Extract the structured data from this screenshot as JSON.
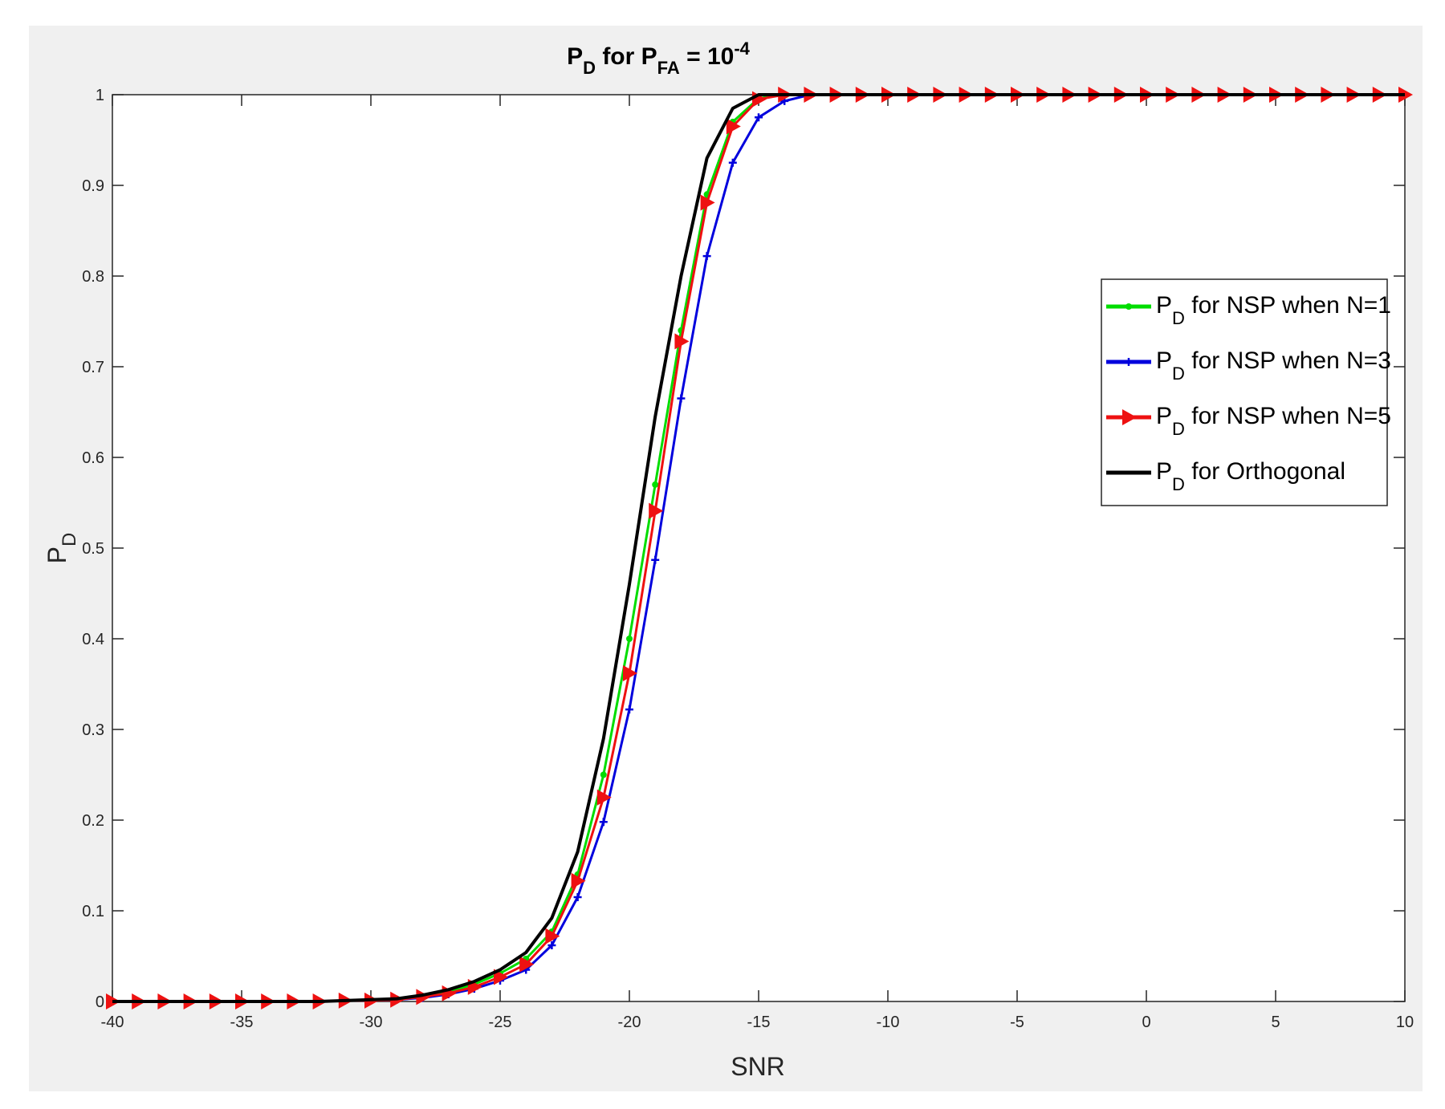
{
  "chart_data": {
    "type": "line",
    "title": {
      "main": "P",
      "main_sub": "D",
      "mid": " for P",
      "mid_sub": "FA",
      "eq": " = 10",
      "exp": "-4"
    },
    "xlabel": "SNR",
    "ylabel": {
      "main": "P",
      "sub": "D"
    },
    "xlim": [
      -40,
      10
    ],
    "ylim": [
      0,
      1
    ],
    "x_ticks": [
      "-40",
      "-35",
      "-30",
      "-25",
      "-20",
      "-15",
      "-10",
      "-5",
      "0",
      "5",
      "10"
    ],
    "y_ticks": [
      "0",
      "0.1",
      "0.2",
      "0.3",
      "0.4",
      "0.5",
      "0.6",
      "0.7",
      "0.8",
      "0.9",
      "1"
    ],
    "grid": false,
    "legend_position": "right-middle",
    "x": [
      -40,
      -39,
      -38,
      -37,
      -36,
      -35,
      -34,
      -33,
      -32,
      -31,
      -30,
      -29,
      -28,
      -27,
      -26,
      -25,
      -24,
      -23,
      -22,
      -21,
      -20,
      -19,
      -18,
      -17,
      -16,
      -15,
      -14,
      -13,
      -12,
      -11,
      -10,
      -9,
      -8,
      -7,
      -6,
      -5,
      -4,
      -3,
      -2,
      -1,
      0,
      1,
      2,
      3,
      4,
      5,
      6,
      7,
      8,
      9,
      10
    ],
    "series": [
      {
        "legend_main": "P",
        "legend_sub": "D",
        "legend_rest": " for NSP when N=1",
        "color": "#00dd00",
        "marker": "dot",
        "values": [
          0,
          0,
          0,
          0,
          0,
          0,
          0,
          0,
          0,
          0.001,
          0.002,
          0.003,
          0.006,
          0.011,
          0.019,
          0.031,
          0.047,
          0.077,
          0.14,
          0.25,
          0.4,
          0.57,
          0.74,
          0.89,
          0.97,
          0.996,
          1,
          1,
          1,
          1,
          1,
          1,
          1,
          1,
          1,
          1,
          1,
          1,
          1,
          1,
          1,
          1,
          1,
          1,
          1,
          1,
          1,
          1,
          1,
          1,
          1
        ]
      },
      {
        "legend_main": "P",
        "legend_sub": "D",
        "legend_rest": " for NSP when N=3",
        "color": "#0000dd",
        "marker": "plus",
        "values": [
          0,
          0,
          0,
          0,
          0,
          0,
          0,
          0,
          0,
          0.001,
          0.001,
          0.002,
          0.004,
          0.008,
          0.014,
          0.023,
          0.035,
          0.062,
          0.115,
          0.198,
          0.322,
          0.487,
          0.665,
          0.822,
          0.925,
          0.975,
          0.993,
          1,
          1,
          1,
          1,
          1,
          1,
          1,
          1,
          1,
          1,
          1,
          1,
          1,
          1,
          1,
          1,
          1,
          1,
          1,
          1,
          1,
          1,
          1,
          1
        ]
      },
      {
        "legend_main": "P",
        "legend_sub": "D",
        "legend_rest": " for NSP when N=5",
        "color": "#ee1111",
        "marker": "triangle-right",
        "values": [
          0,
          0,
          0,
          0,
          0,
          0,
          0,
          0,
          0,
          0.001,
          0.001,
          0.002,
          0.005,
          0.009,
          0.016,
          0.027,
          0.041,
          0.072,
          0.133,
          0.225,
          0.362,
          0.541,
          0.728,
          0.881,
          0.965,
          0.995,
          1,
          1,
          1,
          1,
          1,
          1,
          1,
          1,
          1,
          1,
          1,
          1,
          1,
          1,
          1,
          1,
          1,
          1,
          1,
          1,
          1,
          1,
          1,
          1,
          1
        ]
      },
      {
        "legend_main": "P",
        "legend_sub": "D",
        "legend_rest": " for Orthogonal",
        "color": "#000000",
        "marker": "none",
        "values": [
          0,
          0,
          0,
          0,
          0,
          0,
          0,
          0,
          0,
          0.001,
          0.002,
          0.003,
          0.007,
          0.013,
          0.022,
          0.035,
          0.054,
          0.092,
          0.165,
          0.29,
          0.46,
          0.645,
          0.8,
          0.93,
          0.985,
          1,
          1,
          1,
          1,
          1,
          1,
          1,
          1,
          1,
          1,
          1,
          1,
          1,
          1,
          1,
          1,
          1,
          1,
          1,
          1,
          1,
          1,
          1,
          1,
          1,
          1
        ]
      }
    ]
  }
}
